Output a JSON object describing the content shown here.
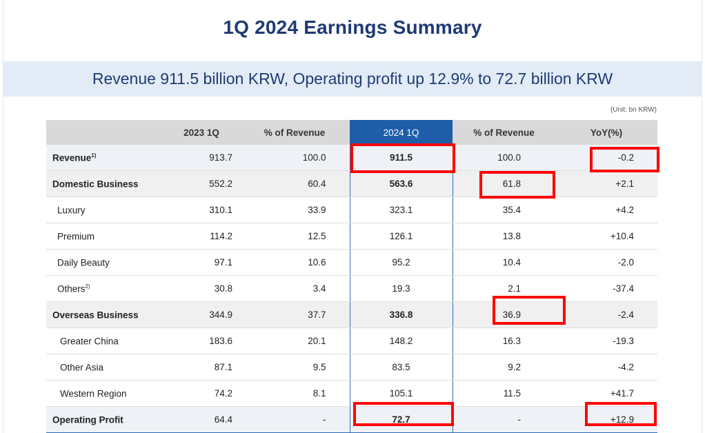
{
  "title": "1Q 2024 Earnings Summary",
  "banner": "Revenue 911.5 billion KRW, Operating profit up 12.9% to 72.7 billion KRW",
  "unit": "(Unit: bn KRW)",
  "headers": [
    "",
    "2023 1Q",
    "% of Revenue",
    "2024 1Q",
    "% of Revenue",
    "YoY(%)"
  ],
  "rows": [
    {
      "label": "Revenue",
      "sup": "1)",
      "v2023": "913.7",
      "p2023": "100.0",
      "v2024": "911.5",
      "p2024": "100.0",
      "yoy": "-0.2"
    },
    {
      "label": "Domestic Business",
      "sup": "",
      "v2023": "552.2",
      "p2023": "60.4",
      "v2024": "563.6",
      "p2024": "61.8",
      "yoy": "+2.1"
    },
    {
      "label": "Luxury",
      "sup": "",
      "v2023": "310.1",
      "p2023": "33.9",
      "v2024": "323.1",
      "p2024": "35.4",
      "yoy": "+4.2"
    },
    {
      "label": "Premium",
      "sup": "",
      "v2023": "114.2",
      "p2023": "12.5",
      "v2024": "126.1",
      "p2024": "13.8",
      "yoy": "+10.4"
    },
    {
      "label": "Daily Beauty",
      "sup": "",
      "v2023": "97.1",
      "p2023": "10.6",
      "v2024": "95.2",
      "p2024": "10.4",
      "yoy": "-2.0"
    },
    {
      "label": "Others",
      "sup": "2)",
      "v2023": "30.8",
      "p2023": "3.4",
      "v2024": "19.3",
      "p2024": "2.1",
      "yoy": "-37.4"
    },
    {
      "label": "Overseas Business",
      "sup": "",
      "v2023": "344.9",
      "p2023": "37.7",
      "v2024": "336.8",
      "p2024": "36.9",
      "yoy": "-2.4"
    },
    {
      "label": "Greater China",
      "sup": "",
      "v2023": "183.6",
      "p2023": "20.1",
      "v2024": "148.2",
      "p2024": "16.3",
      "yoy": "-19.3"
    },
    {
      "label": "Other Asia",
      "sup": "",
      "v2023": "87.1",
      "p2023": "9.5",
      "v2024": "83.5",
      "p2024": "9.2",
      "yoy": "-4.2"
    },
    {
      "label": "Western Region",
      "sup": "",
      "v2023": "74.2",
      "p2023": "8.1",
      "v2024": "105.1",
      "p2024": "11.5",
      "yoy": "+41.7"
    },
    {
      "label": "Operating Profit",
      "sup": "",
      "v2023": "64.4",
      "p2023": "-",
      "v2024": "72.7",
      "p2024": "-",
      "yoy": "+12.9"
    }
  ],
  "colors": {
    "title": "#1f3a74",
    "banner_bg": "#e3ecf6",
    "highlight_header": "#1e5ea8",
    "annotation_box": "#ff0000"
  }
}
